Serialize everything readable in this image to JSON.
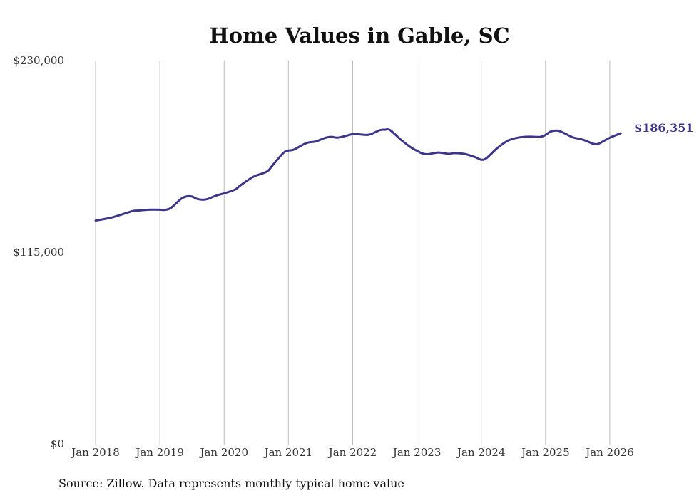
{
  "chart_data": {
    "type": "line",
    "title": "Home Values in Gable, SC",
    "source": "Source: Zillow. Data represents monthly typical home value",
    "series_color": "#3d3589",
    "ylim": [
      0,
      230000
    ],
    "yticks": [
      {
        "value": 0,
        "label": "$0"
      },
      {
        "value": 115000,
        "label": "$115,000"
      },
      {
        "value": 230000,
        "label": "$230,000"
      }
    ],
    "xlim": [
      2018.0,
      2026.2
    ],
    "xticks": [
      {
        "value": 2018,
        "label": "Jan 2018"
      },
      {
        "value": 2019,
        "label": "Jan 2019"
      },
      {
        "value": 2020,
        "label": "Jan 2020"
      },
      {
        "value": 2021,
        "label": "Jan 2021"
      },
      {
        "value": 2022,
        "label": "Jan 2022"
      },
      {
        "value": 2023,
        "label": "Jan 2023"
      },
      {
        "value": 2024,
        "label": "Jan 2024"
      },
      {
        "value": 2025,
        "label": "Jan 2025"
      },
      {
        "value": 2026,
        "label": "Jan 2026"
      }
    ],
    "last_label": "$186,351",
    "series": [
      {
        "name": "Typical home value",
        "x": [
          2018.0,
          2018.08,
          2018.25,
          2018.42,
          2018.58,
          2018.67,
          2018.83,
          2019.0,
          2019.08,
          2019.17,
          2019.33,
          2019.42,
          2019.5,
          2019.58,
          2019.67,
          2019.75,
          2019.83,
          2019.92,
          2020.0,
          2020.17,
          2020.25,
          2020.42,
          2020.5,
          2020.67,
          2020.75,
          2020.92,
          2021.0,
          2021.08,
          2021.25,
          2021.33,
          2021.42,
          2021.58,
          2021.67,
          2021.75,
          2021.83,
          2021.92,
          2022.0,
          2022.08,
          2022.25,
          2022.42,
          2022.5,
          2022.58,
          2022.75,
          2022.92,
          2023.0,
          2023.08,
          2023.17,
          2023.33,
          2023.5,
          2023.58,
          2023.75,
          2023.92,
          2024.0,
          2024.08,
          2024.25,
          2024.42,
          2024.58,
          2024.75,
          2024.92,
          2025.0,
          2025.08,
          2025.17,
          2025.25,
          2025.42,
          2025.58,
          2025.75,
          2025.83,
          2026.0,
          2026.17
        ],
        "values": [
          134000,
          134500,
          135800,
          137800,
          139700,
          140000,
          140500,
          140500,
          140400,
          141500,
          147000,
          148500,
          148400,
          147000,
          146500,
          147000,
          148300,
          149500,
          150300,
          152600,
          155000,
          159500,
          161000,
          163500,
          167000,
          174500,
          176000,
          176500,
          180000,
          181000,
          181400,
          183700,
          184200,
          183700,
          184200,
          185100,
          185800,
          185800,
          185500,
          188200,
          188500,
          188300,
          182500,
          177500,
          175900,
          174300,
          173800,
          174800,
          174000,
          174500,
          173900,
          171800,
          170500,
          171400,
          177500,
          182000,
          183800,
          184300,
          184200,
          185400,
          187400,
          188000,
          187200,
          184000,
          182500,
          180000,
          180200,
          183700,
          186351
        ]
      }
    ]
  }
}
